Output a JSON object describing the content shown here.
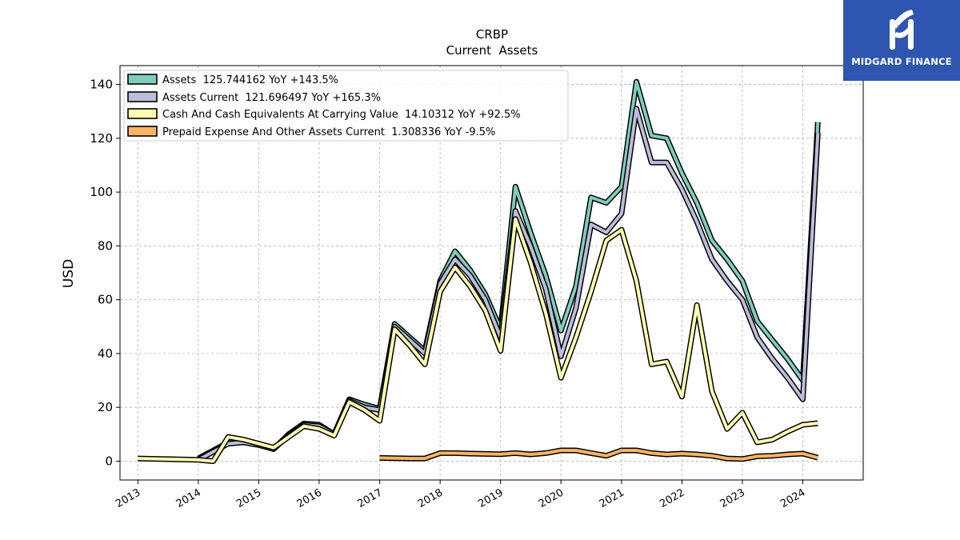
{
  "chart_data": {
    "type": "line",
    "title": "CRBP",
    "subtitle": "Current  Assets",
    "xlabel": "",
    "ylabel": "USD",
    "xlim": [
      "2012-09-15",
      "2024-12-31"
    ],
    "ylim": [
      -7,
      147
    ],
    "yticks": [
      0,
      20,
      40,
      60,
      80,
      100,
      120,
      140
    ],
    "xtick_labels": [
      "2013",
      "2014",
      "2015",
      "2016",
      "2017",
      "2018",
      "2019",
      "2020",
      "2021",
      "2022",
      "2023",
      "2024"
    ],
    "grid": true,
    "legend_position": "top-left",
    "series": [
      {
        "name": "Assets  125.744162 YoY +143.5%",
        "color": "#7fcdbb",
        "points": [
          [
            "2014-01-01",
            1.0
          ],
          [
            "2014-07-01",
            7.0
          ],
          [
            "2014-10-01",
            7.5
          ],
          [
            "2015-01-01",
            6.5
          ],
          [
            "2015-04-01",
            4.5
          ],
          [
            "2015-07-01",
            10.0
          ],
          [
            "2015-10-01",
            14.0
          ],
          [
            "2016-01-01",
            13.5
          ],
          [
            "2016-04-01",
            10.0
          ],
          [
            "2016-07-01",
            23.0
          ],
          [
            "2016-10-01",
            21.0
          ],
          [
            "2017-01-01",
            19.5
          ],
          [
            "2017-04-01",
            51.0
          ],
          [
            "2017-07-01",
            46.0
          ],
          [
            "2017-10-01",
            41.0
          ],
          [
            "2018-01-01",
            67.0
          ],
          [
            "2018-04-01",
            78.0
          ],
          [
            "2018-07-01",
            71.0
          ],
          [
            "2018-10-01",
            62.0
          ],
          [
            "2019-01-01",
            49.0
          ],
          [
            "2019-04-01",
            102.0
          ],
          [
            "2019-07-01",
            85.0
          ],
          [
            "2019-10-01",
            69.0
          ],
          [
            "2020-01-01",
            48.5
          ],
          [
            "2020-04-01",
            65.0
          ],
          [
            "2020-07-01",
            98.0
          ],
          [
            "2020-10-01",
            96.0
          ],
          [
            "2021-01-01",
            102.0
          ],
          [
            "2021-04-01",
            141.0
          ],
          [
            "2021-07-01",
            121.0
          ],
          [
            "2021-10-01",
            120.0
          ],
          [
            "2022-01-01",
            107.0
          ],
          [
            "2022-04-01",
            96.0
          ],
          [
            "2022-07-01",
            82.0
          ],
          [
            "2022-10-01",
            75.0
          ],
          [
            "2023-01-01",
            67.0
          ],
          [
            "2023-04-01",
            52.0
          ],
          [
            "2023-07-01",
            45.0
          ],
          [
            "2023-10-01",
            38.0
          ],
          [
            "2024-01-01",
            30.0
          ],
          [
            "2024-04-01",
            126.0
          ]
        ]
      },
      {
        "name": "Assets Current  121.696497 YoY +165.3%",
        "color": "#bcbddc",
        "points": [
          [
            "2014-01-01",
            0.5
          ],
          [
            "2014-07-01",
            6.5
          ],
          [
            "2014-10-01",
            7.0
          ],
          [
            "2015-01-01",
            6.0
          ],
          [
            "2015-04-01",
            4.5
          ],
          [
            "2015-07-01",
            9.5
          ],
          [
            "2015-10-01",
            13.5
          ],
          [
            "2016-01-01",
            13.0
          ],
          [
            "2016-04-01",
            10.0
          ],
          [
            "2016-07-01",
            22.5
          ],
          [
            "2016-10-01",
            20.0
          ],
          [
            "2017-01-01",
            19.0
          ],
          [
            "2017-04-01",
            50.0
          ],
          [
            "2017-07-01",
            45.0
          ],
          [
            "2017-10-01",
            40.0
          ],
          [
            "2018-01-01",
            66.0
          ],
          [
            "2018-04-01",
            75.0
          ],
          [
            "2018-07-01",
            69.0
          ],
          [
            "2018-10-01",
            60.0
          ],
          [
            "2019-01-01",
            46.0
          ],
          [
            "2019-04-01",
            93.0
          ],
          [
            "2019-07-01",
            80.0
          ],
          [
            "2019-10-01",
            64.0
          ],
          [
            "2020-01-01",
            39.0
          ],
          [
            "2020-04-01",
            57.0
          ],
          [
            "2020-07-01",
            88.0
          ],
          [
            "2020-10-01",
            85.0
          ],
          [
            "2021-01-01",
            92.0
          ],
          [
            "2021-04-01",
            131.0
          ],
          [
            "2021-07-01",
            111.0
          ],
          [
            "2021-10-01",
            111.0
          ],
          [
            "2022-01-01",
            101.0
          ],
          [
            "2022-04-01",
            89.0
          ],
          [
            "2022-07-01",
            75.0
          ],
          [
            "2022-10-01",
            67.0
          ],
          [
            "2023-01-01",
            60.0
          ],
          [
            "2023-04-01",
            46.0
          ],
          [
            "2023-07-01",
            38.0
          ],
          [
            "2023-10-01",
            31.0
          ],
          [
            "2024-01-01",
            23.0
          ],
          [
            "2024-04-01",
            122.0
          ]
        ]
      },
      {
        "name": "Cash And Cash Equivalents At Carrying Value  14.10312 YoY +92.5%",
        "color": "#ffffb3",
        "points": [
          [
            "2013-01-01",
            1.0
          ],
          [
            "2014-01-01",
            0.5
          ],
          [
            "2014-04-01",
            0.0
          ],
          [
            "2014-07-01",
            9.0
          ],
          [
            "2014-10-01",
            8.0
          ],
          [
            "2015-01-01",
            6.5
          ],
          [
            "2015-04-01",
            5.0
          ],
          [
            "2015-07-01",
            9.0
          ],
          [
            "2015-10-01",
            13.0
          ],
          [
            "2016-01-01",
            12.0
          ],
          [
            "2016-04-01",
            9.5
          ],
          [
            "2016-07-01",
            22.0
          ],
          [
            "2016-10-01",
            19.0
          ],
          [
            "2017-01-01",
            15.0
          ],
          [
            "2017-04-01",
            49.0
          ],
          [
            "2017-07-01",
            43.0
          ],
          [
            "2017-10-01",
            36.0
          ],
          [
            "2018-01-01",
            63.0
          ],
          [
            "2018-04-01",
            72.0
          ],
          [
            "2018-07-01",
            65.0
          ],
          [
            "2018-10-01",
            56.0
          ],
          [
            "2019-01-01",
            41.0
          ],
          [
            "2019-04-01",
            90.0
          ],
          [
            "2019-07-01",
            74.0
          ],
          [
            "2019-10-01",
            55.0
          ],
          [
            "2020-01-01",
            31.0
          ],
          [
            "2020-04-01",
            46.0
          ],
          [
            "2020-07-01",
            63.0
          ],
          [
            "2020-10-01",
            82.0
          ],
          [
            "2021-01-01",
            86.0
          ],
          [
            "2021-04-01",
            67.0
          ],
          [
            "2021-07-01",
            36.0
          ],
          [
            "2021-10-01",
            37.0
          ],
          [
            "2022-01-01",
            24.0
          ],
          [
            "2022-04-01",
            58.0
          ],
          [
            "2022-07-01",
            26.0
          ],
          [
            "2022-10-01",
            12.0
          ],
          [
            "2023-01-01",
            18.0
          ],
          [
            "2023-04-01",
            7.0
          ],
          [
            "2023-07-01",
            8.0
          ],
          [
            "2023-10-01",
            11.0
          ],
          [
            "2024-01-01",
            13.5
          ],
          [
            "2024-04-01",
            14.1
          ]
        ]
      },
      {
        "name": "Prepaid Expense And Other Assets Current  1.308336 YoY -9.5%",
        "color": "#fdb462",
        "points": [
          [
            "2017-01-01",
            1.2
          ],
          [
            "2017-04-01",
            1.1
          ],
          [
            "2017-07-01",
            1.0
          ],
          [
            "2017-10-01",
            1.0
          ],
          [
            "2018-01-01",
            3.0
          ],
          [
            "2018-04-01",
            3.0
          ],
          [
            "2018-07-01",
            2.8
          ],
          [
            "2018-10-01",
            2.7
          ],
          [
            "2019-01-01",
            2.6
          ],
          [
            "2019-04-01",
            3.0
          ],
          [
            "2019-07-01",
            2.5
          ],
          [
            "2019-10-01",
            3.0
          ],
          [
            "2020-01-01",
            4.0
          ],
          [
            "2020-04-01",
            4.0
          ],
          [
            "2020-07-01",
            3.0
          ],
          [
            "2020-10-01",
            2.0
          ],
          [
            "2021-01-01",
            4.0
          ],
          [
            "2021-04-01",
            4.0
          ],
          [
            "2021-07-01",
            3.0
          ],
          [
            "2021-10-01",
            2.5
          ],
          [
            "2022-01-01",
            2.8
          ],
          [
            "2022-04-01",
            2.5
          ],
          [
            "2022-07-01",
            2.0
          ],
          [
            "2022-10-01",
            1.0
          ],
          [
            "2023-01-01",
            0.8
          ],
          [
            "2023-04-01",
            1.8
          ],
          [
            "2023-07-01",
            2.0
          ],
          [
            "2023-10-01",
            2.5
          ],
          [
            "2024-01-01",
            2.8
          ],
          [
            "2024-04-01",
            1.3
          ]
        ]
      }
    ]
  },
  "branding": {
    "logo_icon": "midgard-logo-icon",
    "logo_text": "MIDGARD FINANCE",
    "background_color": "#2e56b0"
  }
}
